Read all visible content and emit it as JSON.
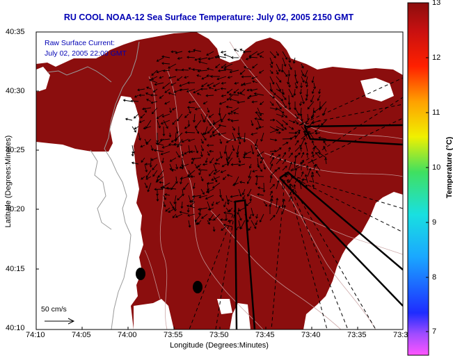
{
  "title": "RU COOL  NOAA-12  Sea Surface Temperature:  July 02, 2005 2150 GMT",
  "current_legend": {
    "line1": "Raw Surface Current:",
    "line2": "July 02, 2005 22:00 GMT"
  },
  "scale_label": "50 cm/s",
  "axes": {
    "xlabel": "Longitude (Degrees:Minutes)",
    "ylabel": "Latitude (Degrees:Minutes)",
    "xticks": [
      "74:10",
      "74:05",
      "74:00",
      "73:55",
      "73:50",
      "73:45",
      "73:40",
      "73:35",
      "73:3"
    ],
    "yticks": [
      "40:35",
      "40:30",
      "40:25",
      "40:20",
      "40:15",
      "40:10"
    ]
  },
  "colorbar": {
    "title": "Temperature (°C)",
    "ticks": [
      "13",
      "12",
      "11",
      "10",
      "9",
      "8",
      "7"
    ],
    "min": 6.6,
    "max": 13
  },
  "colors": {
    "sst": "#8b0e0e",
    "land": "#ffffff",
    "title": "#0000b4"
  }
}
